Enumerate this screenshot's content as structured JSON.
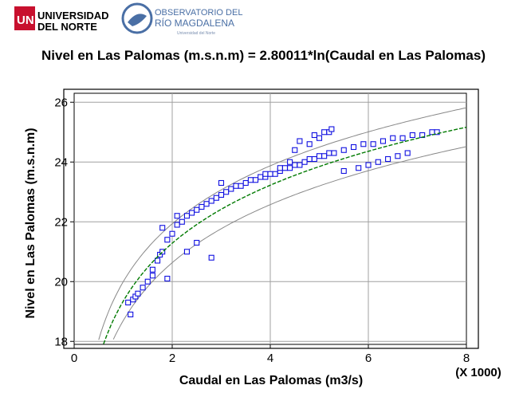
{
  "header": {
    "university_line1": "UNIVERSIDAD",
    "university_line2": "DEL NORTE",
    "observatory_line1": "OBSERVATORIO DEL",
    "observatory_line2": "RÍO MAGDALENA",
    "observatory_tagline": "Universidad del Norte",
    "brand_red": "#c8102e",
    "brand_blue": "#4a6fa5"
  },
  "chart_data": {
    "type": "scatter",
    "title": "Nivel en Las Palomas (m.s.n.m) = 2.80011*ln(Caudal en Las Palomas)",
    "xlabel": "Caudal en Las Palomas (m3/s)",
    "ylabel": "Nivel en Las Palomas (m.s.n.m)",
    "x_multiplier_label": "(X 1000)",
    "xlim": [
      0,
      8
    ],
    "ylim": [
      17.9,
      26.3
    ],
    "x_ticks": [
      "0",
      "2",
      "4",
      "6",
      "8"
    ],
    "y_ticks": [
      "18",
      "20",
      "22",
      "24",
      "26"
    ],
    "x_tick_values": [
      0,
      2,
      4,
      6,
      8
    ],
    "y_tick_values": [
      18,
      20,
      22,
      24,
      26
    ],
    "grid": true,
    "fit": {
      "name": "fitted",
      "coefficient": 2.80011,
      "color": "#007a00"
    },
    "confidence_band": {
      "color": "#888888"
    },
    "point_color": "#1010e0",
    "series": [
      {
        "name": "observations",
        "marker": "square",
        "x": [
          1.1,
          1.2,
          1.25,
          1.3,
          1.4,
          1.5,
          1.6,
          1.7,
          1.75,
          1.8,
          1.9,
          2.0,
          2.1,
          2.2,
          2.3,
          2.4,
          2.5,
          2.6,
          2.7,
          2.8,
          2.9,
          3.0,
          3.1,
          3.2,
          3.3,
          3.4,
          3.5,
          3.6,
          3.7,
          3.8,
          3.9,
          4.0,
          4.1,
          4.2,
          4.3,
          4.4,
          4.5,
          4.6,
          4.7,
          4.8,
          4.9,
          5.0,
          5.1,
          5.2,
          5.3,
          5.5,
          5.7,
          5.9,
          6.1,
          6.3,
          6.5,
          6.7,
          6.9,
          7.1,
          7.3,
          7.4,
          5.5,
          5.8,
          6.0,
          6.2,
          6.4,
          6.6,
          6.8,
          1.8,
          2.1,
          2.8,
          3.0,
          1.6,
          1.15,
          1.9,
          2.3,
          2.5,
          4.5,
          4.8,
          5.0,
          5.2,
          5.25,
          4.6,
          4.9,
          5.1,
          4.2,
          4.4,
          3.9
        ],
        "y": [
          19.3,
          19.4,
          19.5,
          19.6,
          19.8,
          20.0,
          20.4,
          20.7,
          20.9,
          21.0,
          21.4,
          21.6,
          21.9,
          22.0,
          22.2,
          22.3,
          22.4,
          22.5,
          22.6,
          22.7,
          22.8,
          22.9,
          23.0,
          23.1,
          23.2,
          23.2,
          23.3,
          23.4,
          23.4,
          23.5,
          23.5,
          23.6,
          23.6,
          23.7,
          23.8,
          23.8,
          23.9,
          23.9,
          24.0,
          24.1,
          24.1,
          24.2,
          24.2,
          24.3,
          24.3,
          24.4,
          24.5,
          24.6,
          24.6,
          24.7,
          24.8,
          24.8,
          24.9,
          24.9,
          25.0,
          25.0,
          23.7,
          23.8,
          23.9,
          24.0,
          24.1,
          24.2,
          24.3,
          21.8,
          22.2,
          20.8,
          23.3,
          20.2,
          18.9,
          20.1,
          21.0,
          21.3,
          24.4,
          24.6,
          24.8,
          25.0,
          25.1,
          24.7,
          24.9,
          25.0,
          23.8,
          24.0,
          23.6
        ]
      }
    ]
  }
}
